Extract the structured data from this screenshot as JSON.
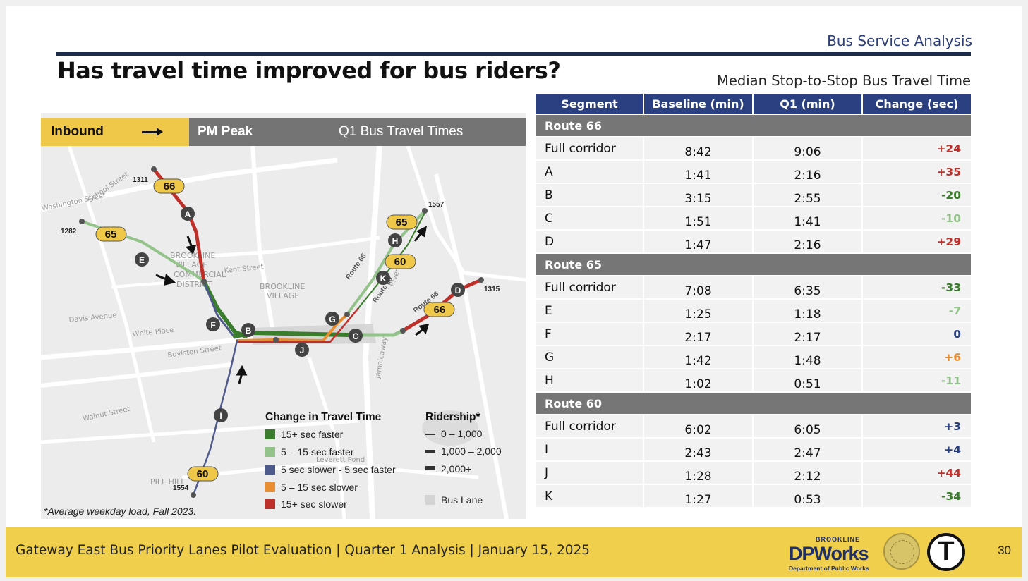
{
  "header": {
    "section": "Bus Service Analysis",
    "title": "Has travel time improved for bus riders?",
    "table_title": "Median Stop-to-Stop Bus Travel Time"
  },
  "map": {
    "direction": "Inbound",
    "period": "PM Peak",
    "title": "Q1 Bus Travel Times",
    "route_badges": [
      "66",
      "65",
      "65",
      "60",
      "66",
      "60"
    ],
    "route_labels": [
      "Route 65",
      "Route 60",
      "Route 66"
    ],
    "stop_ids": [
      "1311",
      "1282",
      "1557",
      "1315",
      "1554"
    ],
    "segment_letters": [
      "A",
      "B",
      "C",
      "D",
      "E",
      "F",
      "G",
      "H",
      "I",
      "J",
      "K"
    ],
    "place_names": [
      "BROOKLINE",
      "VILLAGE",
      "COMMERCIAL",
      "DISTRICT",
      "BROOKLINE",
      "VILLAGE",
      "PILL HILL",
      "Boylston Street",
      "Washington Street",
      "School Street",
      "Jamaicaway",
      "Walnut Street",
      "Davis Avenue",
      "White Place",
      "Kent Street",
      "Leverett Pond",
      "Riverway"
    ],
    "legend_title": "Change in Travel Time",
    "legend": [
      {
        "label": "15+ sec faster",
        "color": "#3a7d2c"
      },
      {
        "label": "5 – 15 sec faster",
        "color": "#93c38a"
      },
      {
        "label": "5 sec slower - 5 sec faster",
        "color": "#4e5a8c"
      },
      {
        "label": "5 – 15 sec slower",
        "color": "#e88e30"
      },
      {
        "label": "15+ sec slower",
        "color": "#c0302b"
      }
    ],
    "ridership_title": "Ridership*",
    "ridership": [
      "0 – 1,000",
      "1,000 – 2,000",
      "2,000+"
    ],
    "bus_lane": "Bus Lane",
    "footnote": "*Average weekday load, Fall 2023."
  },
  "table": {
    "columns": [
      "Segment",
      "Baseline (min)",
      "Q1 (min)",
      "Change (sec)"
    ],
    "groups": [
      {
        "name": "Route 66",
        "rows": [
          {
            "segment": "Full corridor",
            "baseline": "8:42",
            "q1": "9:06",
            "change": "+24",
            "color": "#c0302b"
          },
          {
            "segment": "A",
            "baseline": "1:41",
            "q1": "2:16",
            "change": "+35",
            "color": "#c0302b"
          },
          {
            "segment": "B",
            "baseline": "3:15",
            "q1": "2:55",
            "change": "-20",
            "color": "#3a7d2c"
          },
          {
            "segment": "C",
            "baseline": "1:51",
            "q1": "1:41",
            "change": "-10",
            "color": "#93c38a"
          },
          {
            "segment": "D",
            "baseline": "1:47",
            "q1": "2:16",
            "change": "+29",
            "color": "#c0302b"
          }
        ]
      },
      {
        "name": "Route 65",
        "rows": [
          {
            "segment": "Full corridor",
            "baseline": "7:08",
            "q1": "6:35",
            "change": "-33",
            "color": "#3a7d2c"
          },
          {
            "segment": "E",
            "baseline": "1:25",
            "q1": "1:18",
            "change": "-7",
            "color": "#93c38a"
          },
          {
            "segment": "F",
            "baseline": "2:17",
            "q1": "2:17",
            "change": "0",
            "color": "#2a4080"
          },
          {
            "segment": "G",
            "baseline": "1:42",
            "q1": "1:48",
            "change": "+6",
            "color": "#e88e30"
          },
          {
            "segment": "H",
            "baseline": "1:02",
            "q1": "0:51",
            "change": "-11",
            "color": "#93c38a"
          }
        ]
      },
      {
        "name": "Route 60",
        "rows": [
          {
            "segment": "Full corridor",
            "baseline": "6:02",
            "q1": "6:05",
            "change": "+3",
            "color": "#2a4080"
          },
          {
            "segment": "I",
            "baseline": "2:43",
            "q1": "2:47",
            "change": "+4",
            "color": "#2a4080"
          },
          {
            "segment": "J",
            "baseline": "1:28",
            "q1": "2:12",
            "change": "+44",
            "color": "#c0302b"
          },
          {
            "segment": "K",
            "baseline": "1:27",
            "q1": "0:53",
            "change": "-34",
            "color": "#3a7d2c"
          }
        ]
      }
    ]
  },
  "footer": {
    "text": "Gateway East Bus Priority Lanes Pilot Evaluation | Quarter 1 Analysis | January 15, 2025",
    "page": "30",
    "logo_top": "BROOKLINE",
    "logo_main": "DPWorks",
    "logo_sub": "Department of Public Works",
    "t_logo": "T"
  }
}
